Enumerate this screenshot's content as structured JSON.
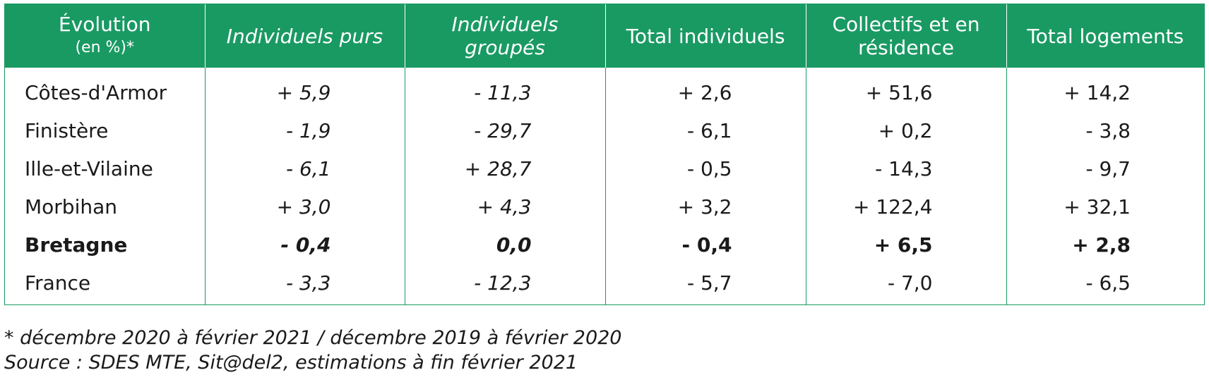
{
  "table": {
    "headers": [
      {
        "line1": "Évolution",
        "line2": "(en %)*"
      },
      {
        "line1": "Individuels purs",
        "line2": ""
      },
      {
        "line1": "Individuels",
        "line2": "groupés"
      },
      {
        "line1": "Total individuels",
        "line2": ""
      },
      {
        "line1": "Collectifs et en",
        "line2": "résidence"
      },
      {
        "line1": "Total logements",
        "line2": ""
      }
    ],
    "rows": [
      {
        "label": "Côtes-d'Armor",
        "values": [
          "+ 5,9",
          "- 11,3",
          "+ 2,6",
          "+ 51,6",
          "+ 14,2"
        ]
      },
      {
        "label": "Finistère",
        "values": [
          "- 1,9",
          "- 29,7",
          "- 6,1",
          "+ 0,2",
          "- 3,8"
        ]
      },
      {
        "label": "Ille-et-Vilaine",
        "values": [
          "- 6,1",
          "+ 28,7",
          "- 0,5",
          "- 14,3",
          "- 9,7"
        ]
      },
      {
        "label": "Morbihan",
        "values": [
          "+ 3,0",
          "+ 4,3",
          "+ 3,2",
          "+ 122,4",
          "+ 32,1"
        ]
      },
      {
        "label": "Bretagne",
        "values": [
          "- 0,4",
          "0,0",
          "- 0,4",
          "+ 6,5",
          "+ 2,8"
        ]
      },
      {
        "label": "France",
        "values": [
          "- 3,3",
          "- 12,3",
          "- 5,7",
          "- 7,0",
          "- 6,5"
        ]
      }
    ]
  },
  "notes": {
    "footnote": "* décembre 2020 à février 2021 / décembre 2019 à février 2020",
    "source": "Source : SDES MTE, Sit@del2, estimations à fin février 2021"
  },
  "colors": {
    "accent": "#1a9a63"
  }
}
